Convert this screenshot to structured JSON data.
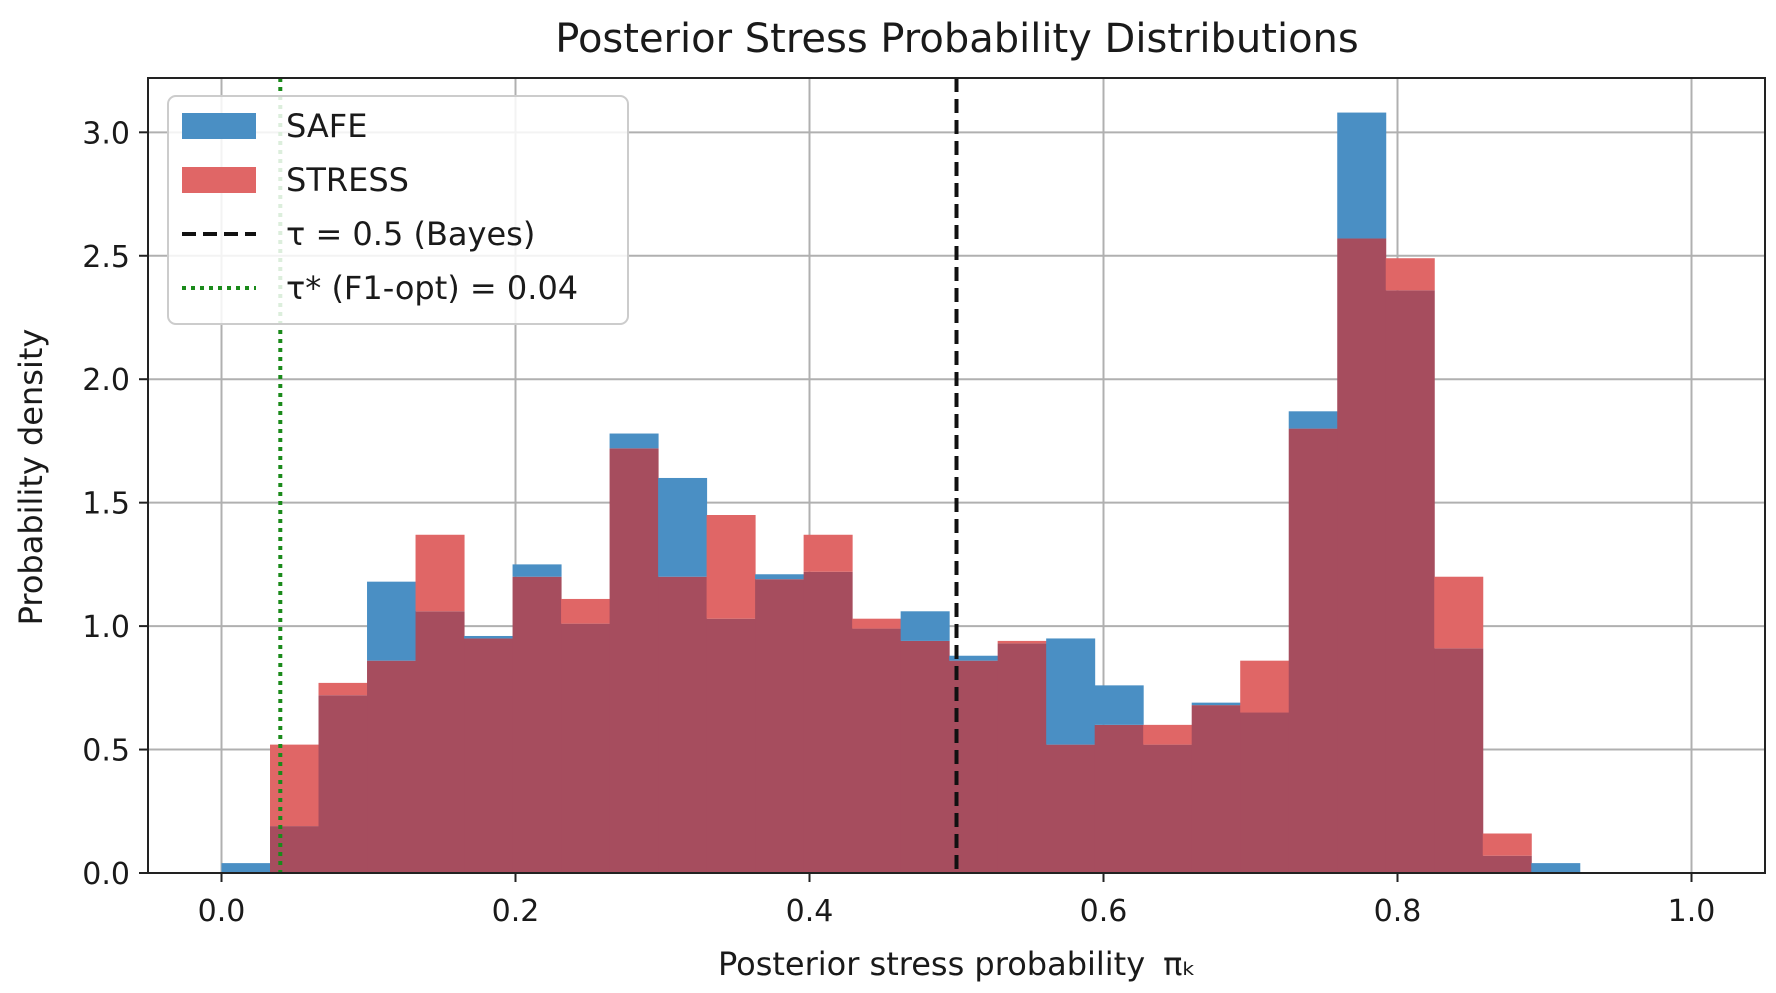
{
  "chart_data": {
    "type": "histogram",
    "title": "Posterior Stress Probability Distributions",
    "xlabel": "Posterior stress probability",
    "xlabel_symbol": "πₖ",
    "ylabel": "Probability density",
    "xlim": [
      -0.05,
      1.05
    ],
    "ylim": [
      0,
      3.22
    ],
    "xticks": [
      0.0,
      0.2,
      0.4,
      0.6,
      0.8,
      1.0
    ],
    "xtick_labels": [
      "0.0",
      "0.2",
      "0.4",
      "0.6",
      "0.8",
      "1.0"
    ],
    "yticks": [
      0.0,
      0.5,
      1.0,
      1.5,
      2.0,
      2.5,
      3.0
    ],
    "ytick_labels": [
      "0.0",
      "0.5",
      "1.0",
      "1.5",
      "2.0",
      "2.5",
      "3.0"
    ],
    "grid": true,
    "legend_position": "top-left",
    "bin_edges": [
      0.0,
      0.033,
      0.066,
      0.099,
      0.132,
      0.165,
      0.198,
      0.231,
      0.264,
      0.297,
      0.33,
      0.363,
      0.396,
      0.429,
      0.462,
      0.495,
      0.528,
      0.561,
      0.594,
      0.627,
      0.66,
      0.693,
      0.726,
      0.759,
      0.792,
      0.825,
      0.858,
      0.891,
      0.924,
      0.957,
      0.99
    ],
    "series": [
      {
        "name": "SAFE",
        "color": "#4a8fc4",
        "values": [
          0.04,
          0.19,
          0.72,
          1.18,
          1.06,
          0.96,
          1.25,
          1.01,
          1.78,
          1.6,
          1.03,
          1.21,
          1.22,
          0.99,
          1.06,
          0.88,
          0.93,
          0.95,
          0.76,
          0.52,
          0.69,
          0.65,
          1.87,
          3.08,
          2.36,
          0.91,
          0.07,
          0.04,
          0.0,
          0.0
        ]
      },
      {
        "name": "STRESS",
        "color": "#e06666",
        "values": [
          0.0,
          0.52,
          0.77,
          0.86,
          1.37,
          0.95,
          1.2,
          1.11,
          1.72,
          1.2,
          1.45,
          1.19,
          1.37,
          1.03,
          0.94,
          0.86,
          0.94,
          0.52,
          0.6,
          0.6,
          0.68,
          0.86,
          1.8,
          2.57,
          2.49,
          1.2,
          0.16,
          0.0,
          0.0,
          0.0
        ]
      }
    ],
    "overlap_color": "#a64d5e",
    "vlines": [
      {
        "name": "τ = 0.5 (Bayes)",
        "x": 0.5,
        "style": "dashed",
        "color": "#111111"
      },
      {
        "name": "τ* (F1-opt) = 0.04",
        "x": 0.04,
        "style": "dotted",
        "color": "#1a8a1a"
      }
    ]
  }
}
